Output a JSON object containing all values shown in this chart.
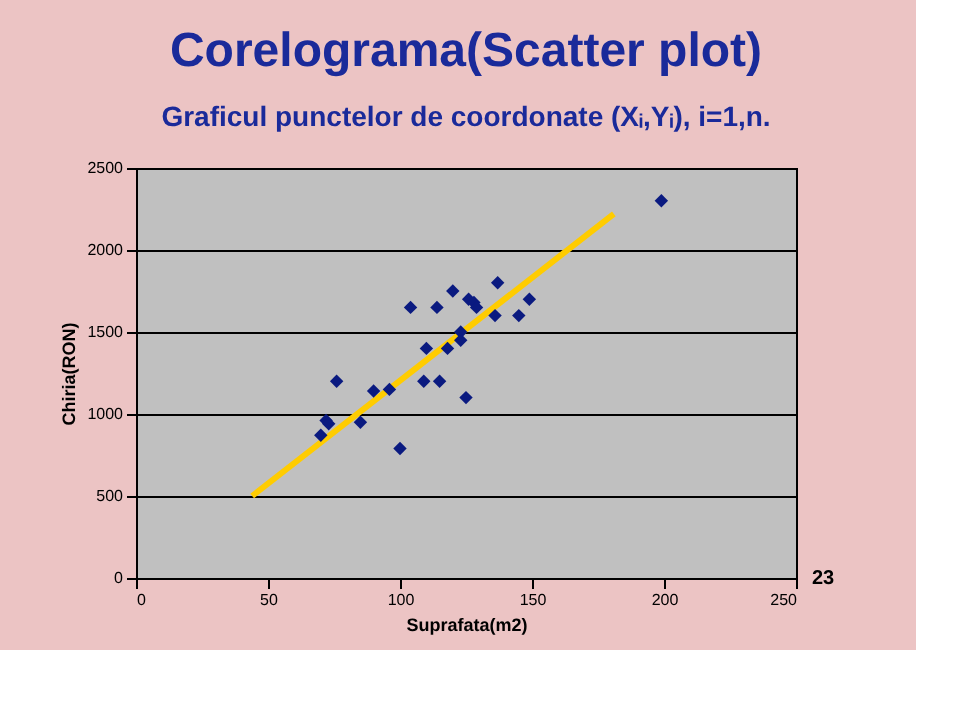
{
  "chart_data": {
    "type": "scatter",
    "title": "Corelograma(Scatter plot)",
    "subtitle": "Graficul punctelor de coordonate (Xᵢ,Yᵢ), i=1,n.",
    "xlabel": "Suprafata(m2)",
    "ylabel": "Chiria(RON)",
    "xlim": [
      0,
      250
    ],
    "ylim": [
      0,
      2500
    ],
    "xticks": [
      0,
      50,
      100,
      150,
      200,
      250
    ],
    "yticks": [
      0,
      500,
      1000,
      1500,
      2000,
      2500
    ],
    "grid": "y",
    "marker": "diamond",
    "annotations": [
      "23"
    ],
    "series": [
      {
        "type": "line",
        "color": "#ffcc00",
        "marker": "none",
        "line_style": "solid",
        "x": [
          44,
          181
        ],
        "values": [
          500,
          2220
        ]
      },
      {
        "color": "#0a1a80",
        "x": [
          70,
          72,
          73,
          76,
          85,
          90,
          96,
          100,
          104,
          109,
          110,
          114,
          115,
          118,
          120,
          123,
          123,
          125,
          126,
          128,
          129,
          136,
          137,
          145,
          149,
          199
        ],
        "values": [
          870,
          960,
          940,
          1200,
          950,
          1140,
          1150,
          790,
          1650,
          1200,
          1400,
          1650,
          1200,
          1400,
          1750,
          1450,
          1500,
          1100,
          1700,
          1680,
          1650,
          1600,
          1800,
          1600,
          1700,
          2300
        ]
      }
    ]
  }
}
